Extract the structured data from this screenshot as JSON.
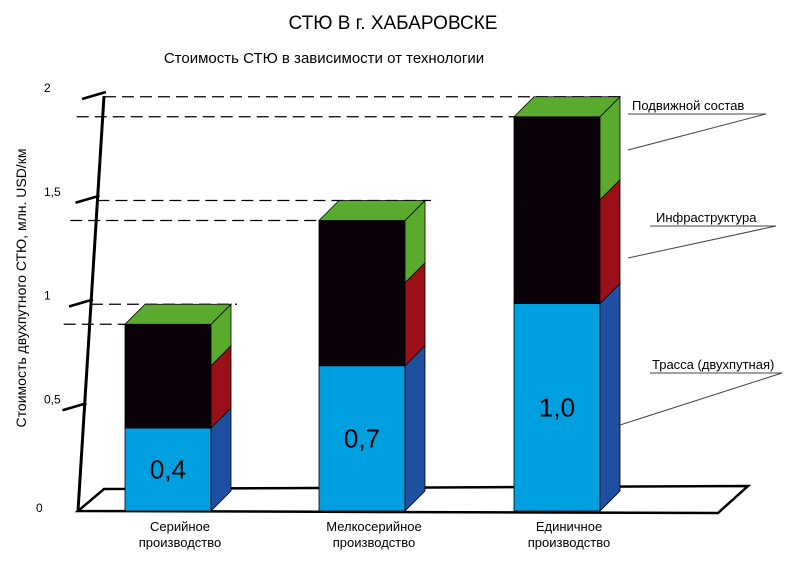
{
  "chart_data": {
    "type": "bar",
    "stacked": true,
    "three_d": true,
    "title": "СТЮ В г. ХАБАРОВСКЕ",
    "subtitle": "Стоимость СТЮ в зависимости от технологии",
    "ylabel": "Стоимость двухпутного СТЮ, млн. USD/км",
    "ylim": [
      0,
      2
    ],
    "yticks": [
      {
        "value": 0,
        "label": "0"
      },
      {
        "value": 0.5,
        "label": "0,5"
      },
      {
        "value": 1,
        "label": "1"
      },
      {
        "value": 1.5,
        "label": "1,5"
      },
      {
        "value": 2,
        "label": "2"
      }
    ],
    "categories": [
      [
        "Серийное",
        "производство"
      ],
      [
        "Мелкосерийное",
        "производство"
      ],
      [
        "Единичное",
        "производство"
      ]
    ],
    "series": [
      {
        "name": "Трасса (двухпутная)",
        "values": [
          0.4,
          0.7,
          1.0
        ],
        "labels": [
          "0,4",
          "0,7",
          "1,0"
        ],
        "front_color": "#00a0e0",
        "side_color": "#1f4fa0"
      },
      {
        "name": "Инфраструктура",
        "values": [
          0.3,
          0.4,
          0.5
        ],
        "front_color": "#0a0208",
        "side_color": "#9b1018"
      },
      {
        "name": "Подвижной состав",
        "values": [
          0.2,
          0.3,
          0.4
        ],
        "front_color": "#0a0208",
        "side_color": "#5aaa2e",
        "top_color": "#5aaa2e"
      }
    ]
  }
}
